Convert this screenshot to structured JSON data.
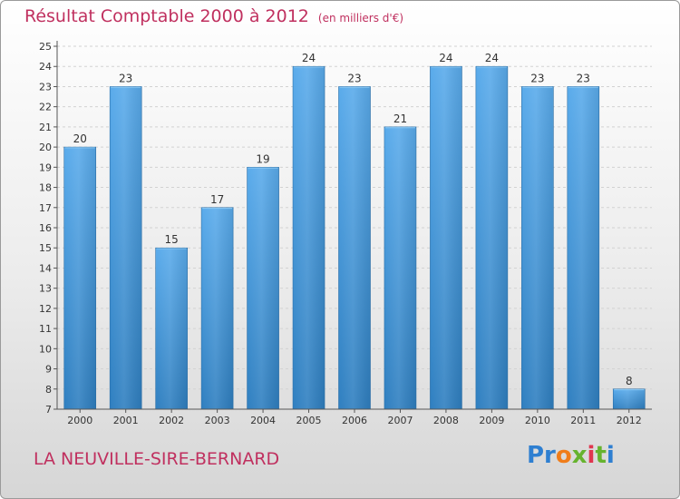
{
  "title": "Résultat Comptable 2000 à 2012",
  "subtitle": "(en milliers d'€)",
  "commune": "LA NEUVILLE-SIRE-BERNARD",
  "logo": {
    "text": "Proxiti"
  },
  "colors": {
    "title": "#c0305f",
    "bar_top": "#5aabeb",
    "bar_bottom": "#2f7fc0"
  },
  "chart_data": {
    "type": "bar",
    "categories": [
      "2000",
      "2001",
      "2002",
      "2003",
      "2004",
      "2005",
      "2006",
      "2007",
      "2008",
      "2009",
      "2010",
      "2011",
      "2012"
    ],
    "values": [
      20,
      23,
      15,
      17,
      19,
      24,
      23,
      21,
      24,
      24,
      23,
      23,
      8
    ],
    "ylim": [
      7,
      25
    ],
    "yticks": [
      7,
      8,
      9,
      10,
      11,
      12,
      13,
      14,
      15,
      16,
      17,
      18,
      19,
      20,
      21,
      22,
      23,
      24,
      25
    ],
    "grid": true,
    "legend": "none"
  }
}
